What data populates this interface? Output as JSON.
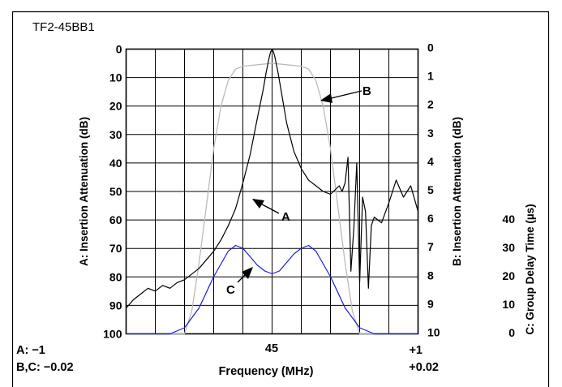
{
  "chart_data": {
    "type": "line",
    "title": "TF2-45BB1",
    "xlabel": "Frequency (MHz)",
    "x_ticks": {
      "left_a": "A: −1",
      "center": "45",
      "right_a": "+1",
      "left_bc": "B,C: −0.02",
      "right_bc": "+0.02"
    },
    "x_range": {
      "A": [
        -1,
        1
      ],
      "B": [
        -0.02,
        0.02
      ],
      "C": [
        -0.02,
        0.02
      ],
      "center_MHz": 45,
      "divisions": 10
    },
    "y_left": {
      "label": "A: Insertion Attenuation (dB)",
      "range": [
        0,
        100
      ],
      "ticks": [
        "0",
        "10",
        "20",
        "30",
        "40",
        "50",
        "60",
        "70",
        "80",
        "90",
        "100"
      ],
      "inverted": true
    },
    "y_right1": {
      "label": "B: Insertion Attenuation (dB)",
      "range": [
        0,
        10
      ],
      "ticks": [
        "0",
        "1",
        "2",
        "3",
        "4",
        "5",
        "6",
        "7",
        "8",
        "9",
        "10"
      ],
      "inverted": true
    },
    "y_right2": {
      "label": "C: Group Delay Time (µs)",
      "ticks": [
        "0",
        "10",
        "20",
        "30",
        "40"
      ]
    },
    "grid": true,
    "series": [
      {
        "name": "A",
        "color": "#000000",
        "axis": "left",
        "x": [
          -1.0,
          -0.95,
          -0.9,
          -0.85,
          -0.8,
          -0.75,
          -0.7,
          -0.65,
          -0.6,
          -0.55,
          -0.5,
          -0.45,
          -0.4,
          -0.35,
          -0.3,
          -0.25,
          -0.2,
          -0.15,
          -0.1,
          -0.08,
          -0.06,
          -0.04,
          -0.02,
          -0.01,
          0.0,
          0.01,
          0.02,
          0.04,
          0.06,
          0.08,
          0.1,
          0.15,
          0.2,
          0.25,
          0.3,
          0.35,
          0.4,
          0.42,
          0.44,
          0.46,
          0.48,
          0.5,
          0.52,
          0.54,
          0.56,
          0.58,
          0.6,
          0.62,
          0.64,
          0.66,
          0.68,
          0.7,
          0.75,
          0.8,
          0.85,
          0.9,
          0.95,
          1.0
        ],
        "y": [
          91,
          88,
          86,
          84,
          85,
          83,
          84,
          82,
          81,
          79,
          77,
          74,
          71,
          67,
          62,
          56,
          47,
          37,
          24,
          19,
          14,
          8,
          3,
          1,
          0,
          1,
          3,
          8,
          14,
          20,
          26,
          36,
          42,
          46,
          48,
          50,
          51,
          50,
          49,
          48,
          50,
          47,
          38,
          78,
          63,
          40,
          82,
          52,
          57,
          84,
          62,
          59,
          61,
          54,
          46,
          52,
          48,
          57
        ]
      },
      {
        "name": "B",
        "color": "#bbbbbb",
        "axis": "right1",
        "x": [
          -1.0,
          -0.6,
          -0.55,
          -0.5,
          -0.45,
          -0.4,
          -0.35,
          -0.3,
          -0.25,
          -0.2,
          -0.1,
          0.0,
          0.1,
          0.2,
          0.25,
          0.3,
          0.35,
          0.4,
          0.45,
          0.5,
          0.55,
          0.6,
          1.0
        ],
        "y": [
          10,
          10,
          9.2,
          7.5,
          5.5,
          3.5,
          2.0,
          1.1,
          0.7,
          0.6,
          0.55,
          0.5,
          0.55,
          0.6,
          0.7,
          1.1,
          2.0,
          3.5,
          5.5,
          7.5,
          9.2,
          10,
          10
        ]
      },
      {
        "name": "C",
        "color": "#1a1adb",
        "axis": "right2",
        "x": [
          -1.0,
          -0.9,
          -0.8,
          -0.7,
          -0.6,
          -0.5,
          -0.4,
          -0.3,
          -0.25,
          -0.2,
          -0.15,
          -0.1,
          -0.05,
          0.0,
          0.05,
          0.1,
          0.15,
          0.2,
          0.25,
          0.3,
          0.4,
          0.5,
          0.6,
          0.7,
          0.8,
          0.9,
          1.0
        ],
        "y": [
          -8,
          -7,
          -5,
          -2,
          2,
          9,
          20,
          29,
          31,
          30,
          27,
          24,
          22,
          21,
          22,
          25,
          28,
          30,
          31,
          29,
          20,
          9,
          2,
          -2,
          -5,
          -6,
          -7
        ]
      }
    ],
    "annotations": [
      {
        "text": "A",
        "series": "A"
      },
      {
        "text": "B",
        "series": "B"
      },
      {
        "text": "C",
        "series": "C"
      }
    ]
  }
}
